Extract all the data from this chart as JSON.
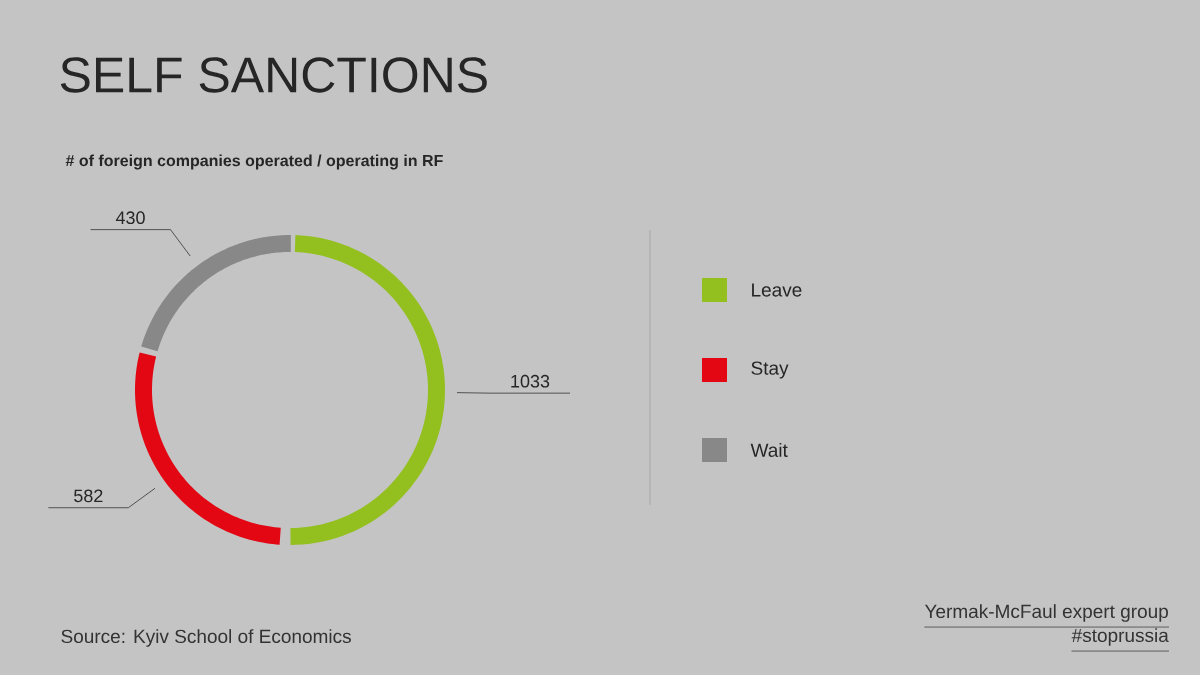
{
  "chart_data": {
    "type": "donut",
    "title": "SELF SANCTIONS",
    "subtitle": "# of foreign companies operated / operating in RF",
    "categories": [
      "Leave",
      "Stay",
      "Wait"
    ],
    "values": [
      1033,
      582,
      430
    ],
    "colors": [
      "#93c01f",
      "#e30613",
      "#888888"
    ],
    "data_labels": true,
    "legend": "right",
    "annotations": [
      "Source: Kyiv School of Economics",
      "Yermak-McFaul expert group",
      "#stoprussia"
    ]
  }
}
